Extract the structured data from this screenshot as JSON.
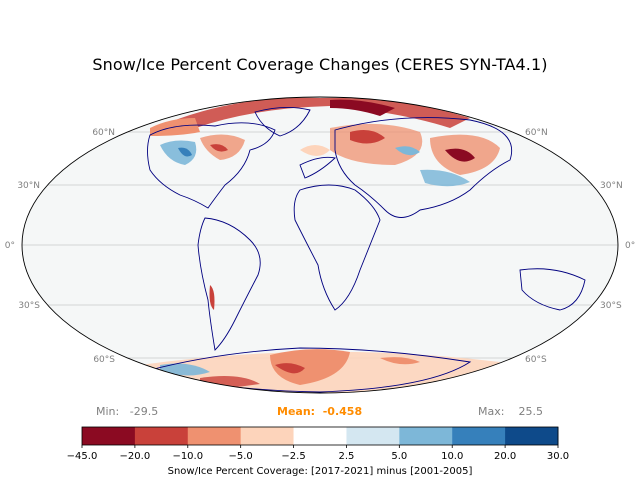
{
  "title": "Snow/Ice Percent Coverage Changes  (CERES SYN-TA4.1)",
  "stats": {
    "min_label": "Min:",
    "min_value": "-29.5",
    "mean_label": "Mean:",
    "mean_value": "-0.458",
    "max_label": "Max:",
    "max_value": "25.5"
  },
  "map": {
    "projection": "Mollweide",
    "ocean_color": "#f5f7f7",
    "coastline_color": "#000080",
    "gridline_color": "#c8c8c8",
    "latitude_labels": [
      "60°N",
      "30°N",
      "0°",
      "30°S",
      "60°S"
    ]
  },
  "colorbar": {
    "label": "Snow/Ice Percent Coverage: [2017-2021] minus [2001-2005]",
    "ticks": [
      "−45.0",
      "−20.0",
      "−10.0",
      "−5.0",
      "−2.5",
      "2.5",
      "5.0",
      "10.0",
      "20.0",
      "30.0"
    ],
    "colors": [
      "#8b0a22",
      "#c9413a",
      "#ef9170",
      "#fdd4bb",
      "#ffffff",
      "#d4e7f1",
      "#7db7d8",
      "#3680bb",
      "#0e4a8a"
    ]
  }
}
